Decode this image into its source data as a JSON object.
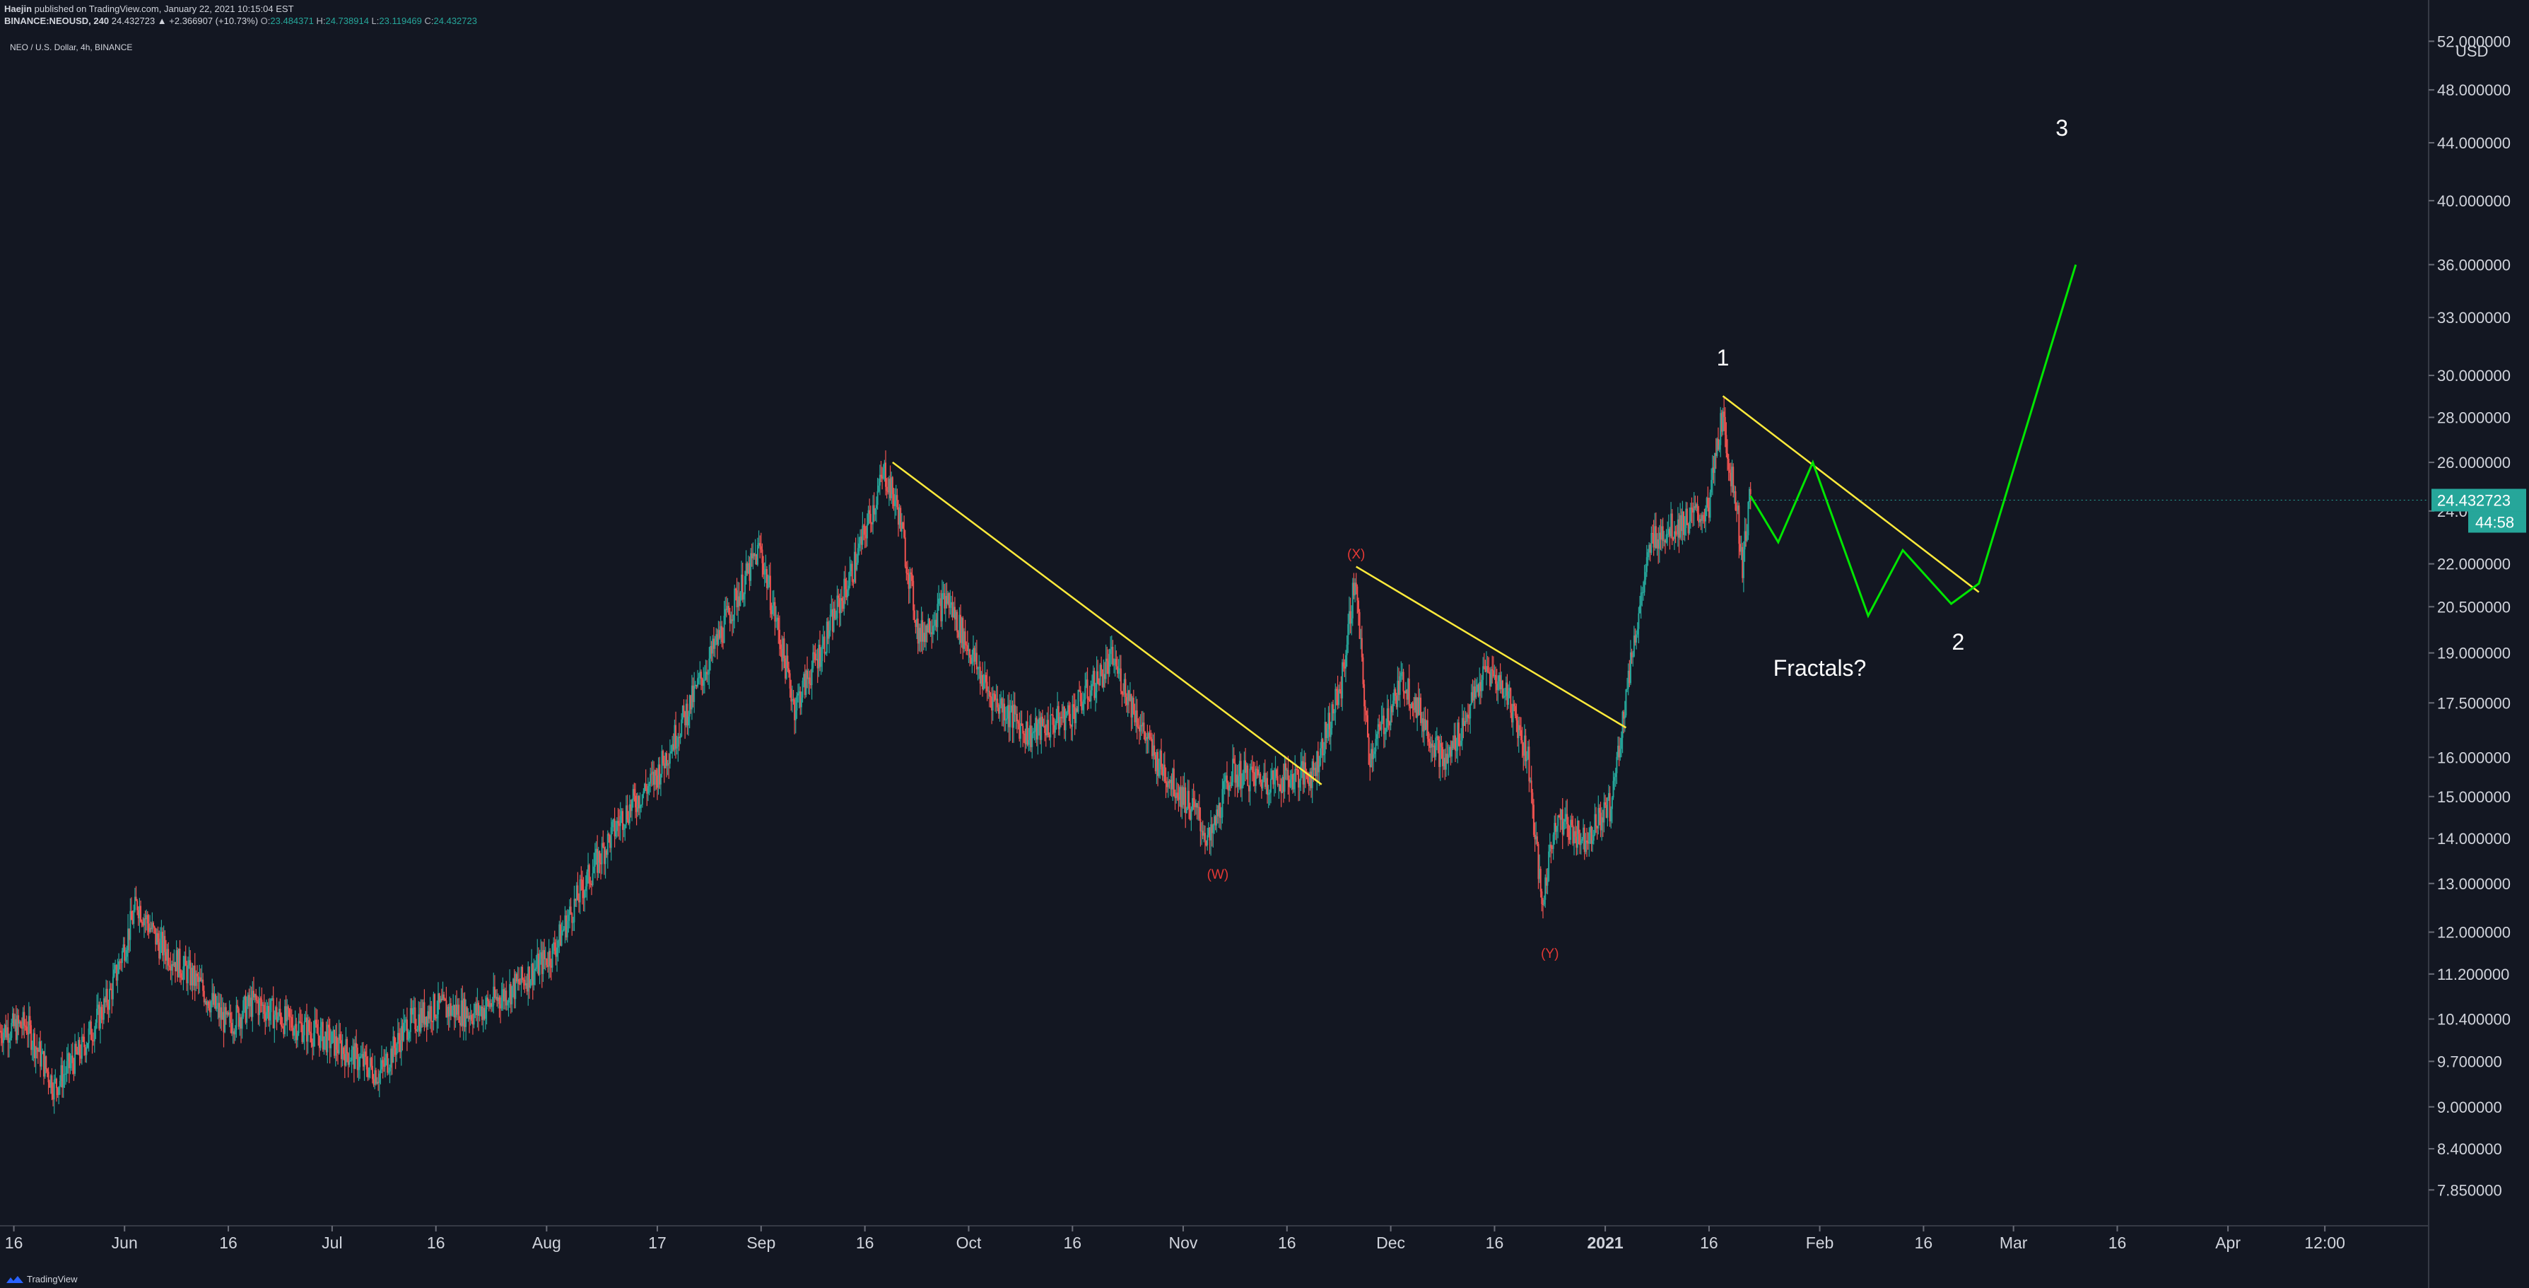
{
  "header": {
    "author": "Haejin",
    "published": "published on TradingView.com, January 22, 2021 10:15:04 EST",
    "symbol": "BINANCE:NEOUSD, 240",
    "change": "24.432723 ▲ +2.366907 (+10.73%)",
    "o_label": "O:",
    "o_value": "23.484371",
    "h_label": "H:",
    "h_value": "24.738914",
    "l_label": "L:",
    "l_value": "23.119469",
    "c_label": "C:",
    "c_value": "24.432723"
  },
  "symbol_line": "NEO / U.S. Dollar, 4h, BINANCE",
  "footer": {
    "brand": "TradingView",
    "logo_icon": "tradingview-logo-icon"
  },
  "colors": {
    "background": "#131722",
    "up": "#26a69a",
    "down": "#ef5350",
    "trendline": "#ffeb3b",
    "projection": "#00e600",
    "wave_label": "#ffffff",
    "corrective_label": "#e53935",
    "price_badge": "#26a69a"
  },
  "chart_data": {
    "type": "candlestick",
    "title": "NEO / U.S. Dollar, 4h, BINANCE",
    "y_unit": "USD",
    "y_scale": "log",
    "ylim": [
      7.4,
      53
    ],
    "xlim": [
      "2020-05-14",
      "2021-04-30"
    ],
    "y_ticks": [
      "52.000000",
      "48.000000",
      "44.000000",
      "40.000000",
      "36.000000",
      "33.000000",
      "30.000000",
      "28.000000",
      "26.000000",
      "24.000000",
      "22.000000",
      "20.500000",
      "19.000000",
      "17.500000",
      "16.000000",
      "15.000000",
      "14.000000",
      "13.000000",
      "12.000000",
      "11.200000",
      "10.400000",
      "9.700000",
      "9.000000",
      "8.400000",
      "7.850000"
    ],
    "x_ticks": [
      {
        "date": "2020-05-16",
        "label": "16"
      },
      {
        "date": "2020-06-01",
        "label": "Jun"
      },
      {
        "date": "2020-06-16",
        "label": "16"
      },
      {
        "date": "2020-07-01",
        "label": "Jul"
      },
      {
        "date": "2020-07-16",
        "label": "16"
      },
      {
        "date": "2020-08-01",
        "label": "Aug"
      },
      {
        "date": "2020-08-17",
        "label": "17"
      },
      {
        "date": "2020-09-01",
        "label": "Sep"
      },
      {
        "date": "2020-09-16",
        "label": "16"
      },
      {
        "date": "2020-10-01",
        "label": "Oct"
      },
      {
        "date": "2020-10-16",
        "label": "16"
      },
      {
        "date": "2020-11-01",
        "label": "Nov"
      },
      {
        "date": "2020-11-16",
        "label": "16"
      },
      {
        "date": "2020-12-01",
        "label": "Dec"
      },
      {
        "date": "2020-12-16",
        "label": "16"
      },
      {
        "date": "2021-01-01",
        "label": "2021"
      },
      {
        "date": "2021-01-16",
        "label": "16"
      },
      {
        "date": "2021-02-01",
        "label": "Feb"
      },
      {
        "date": "2021-02-16",
        "label": "16"
      },
      {
        "date": "2021-03-01",
        "label": "Mar"
      },
      {
        "date": "2021-03-16",
        "label": "16"
      },
      {
        "date": "2021-04-01",
        "label": "Apr"
      },
      {
        "date": "2021-04-15",
        "label": "12:00"
      }
    ],
    "price_path": [
      [
        "2020-05-14",
        10.2
      ],
      [
        "2020-05-18",
        10.3
      ],
      [
        "2020-05-22",
        9.3
      ],
      [
        "2020-05-26",
        9.9
      ],
      [
        "2020-05-30",
        10.8
      ],
      [
        "2020-06-03",
        12.6
      ],
      [
        "2020-06-06",
        11.8
      ],
      [
        "2020-06-12",
        11.0
      ],
      [
        "2020-06-16",
        10.3
      ],
      [
        "2020-06-20",
        10.7
      ],
      [
        "2020-06-24",
        10.4
      ],
      [
        "2020-06-30",
        10.1
      ],
      [
        "2020-07-04",
        9.8
      ],
      [
        "2020-07-08",
        9.5
      ],
      [
        "2020-07-12",
        10.3
      ],
      [
        "2020-07-16",
        10.6
      ],
      [
        "2020-07-22",
        10.5
      ],
      [
        "2020-07-28",
        11.0
      ],
      [
        "2020-08-02",
        11.6
      ],
      [
        "2020-08-06",
        12.8
      ],
      [
        "2020-08-12",
        14.5
      ],
      [
        "2020-08-17",
        15.5
      ],
      [
        "2020-08-22",
        17.5
      ],
      [
        "2020-08-28",
        20.5
      ],
      [
        "2020-09-01",
        22.6
      ],
      [
        "2020-09-06",
        17.4
      ],
      [
        "2020-09-10",
        19.2
      ],
      [
        "2020-09-14",
        21.5
      ],
      [
        "2020-09-19",
        25.6
      ],
      [
        "2020-09-21",
        24.0
      ],
      [
        "2020-09-24",
        19.5
      ],
      [
        "2020-09-28",
        20.8
      ],
      [
        "2020-10-04",
        17.8
      ],
      [
        "2020-10-10",
        16.6
      ],
      [
        "2020-10-16",
        17.2
      ],
      [
        "2020-10-22",
        18.8
      ],
      [
        "2020-10-28",
        16.0
      ],
      [
        "2020-11-03",
        14.6
      ],
      [
        "2020-11-05",
        13.9
      ],
      [
        "2020-11-08",
        15.6
      ],
      [
        "2020-11-14",
        15.4
      ],
      [
        "2020-11-20",
        15.6
      ],
      [
        "2020-11-24",
        18.0
      ],
      [
        "2020-11-26",
        21.5
      ],
      [
        "2020-11-28",
        16.0
      ],
      [
        "2020-12-03",
        18.2
      ],
      [
        "2020-12-09",
        15.8
      ],
      [
        "2020-12-15",
        18.5
      ],
      [
        "2020-12-18",
        17.8
      ],
      [
        "2020-12-21",
        16.0
      ],
      [
        "2020-12-23",
        12.5
      ],
      [
        "2020-12-25",
        14.5
      ],
      [
        "2020-12-29",
        14.0
      ],
      [
        "2021-01-02",
        14.8
      ],
      [
        "2021-01-05",
        19.0
      ],
      [
        "2021-01-08",
        23.0
      ],
      [
        "2021-01-12",
        23.5
      ],
      [
        "2021-01-16",
        24.0
      ],
      [
        "2021-01-18",
        28.0
      ],
      [
        "2021-01-20",
        24.5
      ],
      [
        "2021-01-21",
        22.0
      ],
      [
        "2021-01-22",
        24.43
      ]
    ],
    "candle_interval_hours": 4,
    "last_price_badge": "24.432723",
    "countdown_badge": "44:58",
    "trendlines": [
      {
        "from": [
          "2020-09-20",
          26.0
        ],
        "to": [
          "2020-11-21",
          15.3
        ]
      },
      {
        "from": [
          "2020-11-26",
          21.9
        ],
        "to": [
          "2021-01-04",
          16.8
        ]
      },
      {
        "from": [
          "2021-01-18",
          29.0
        ],
        "to": [
          "2021-02-24",
          21.0
        ]
      }
    ],
    "projection_path": [
      [
        "2021-01-22",
        24.6
      ],
      [
        "2021-01-26",
        22.8
      ],
      [
        "2021-01-31",
        26.0
      ],
      [
        "2021-02-08",
        20.2
      ],
      [
        "2021-02-13",
        22.5
      ],
      [
        "2021-02-20",
        20.6
      ],
      [
        "2021-02-24",
        21.3
      ],
      [
        "2021-03-10",
        36.0
      ]
    ],
    "annotations": [
      {
        "text": "1",
        "at": [
          "2021-01-18",
          30.5
        ],
        "style": "wave"
      },
      {
        "text": "2",
        "at": [
          "2021-02-21",
          19.1
        ],
        "style": "wave"
      },
      {
        "text": "3",
        "at": [
          "2021-03-08",
          44.5
        ],
        "style": "wave"
      },
      {
        "text": "Fractals?",
        "at": [
          "2021-02-01",
          18.3
        ],
        "style": "note"
      },
      {
        "text": "(W)",
        "at": [
          "2020-11-06",
          13.1
        ],
        "style": "corrective"
      },
      {
        "text": "(X)",
        "at": [
          "2020-11-26",
          22.2
        ],
        "style": "corrective"
      },
      {
        "text": "(Y)",
        "at": [
          "2020-12-24",
          11.5
        ],
        "style": "corrective"
      }
    ]
  }
}
